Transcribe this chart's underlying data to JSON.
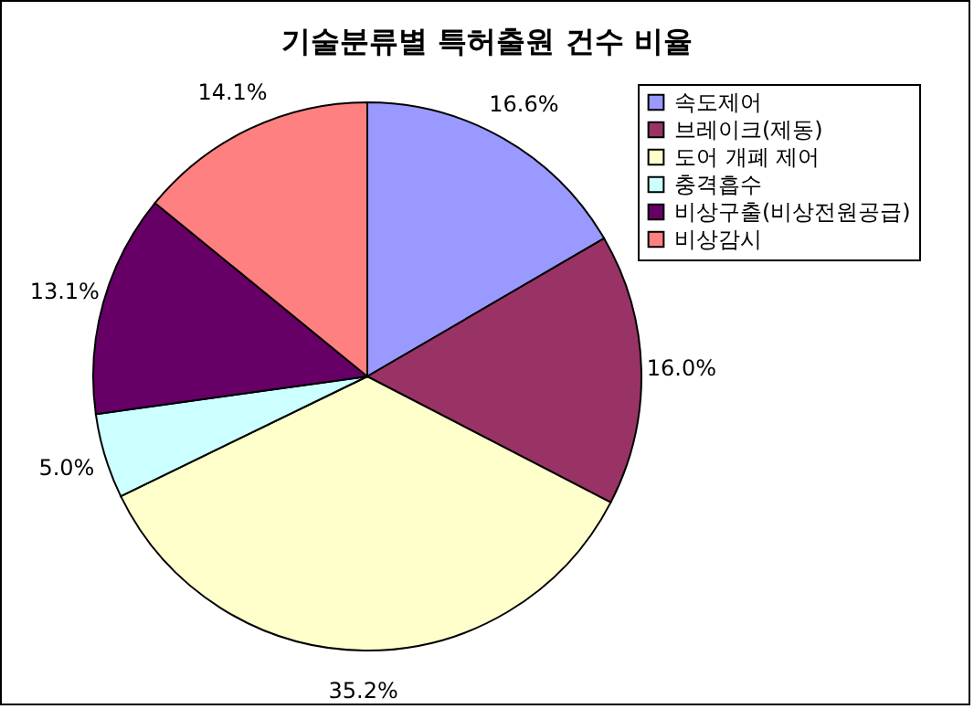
{
  "chart_data": {
    "type": "pie",
    "title": "기술분류별 특허출원 건수 비율",
    "categories": [
      "속도제어",
      "브레이크(제동)",
      "도어 개폐 제어",
      "충격흡수",
      "비상구출(비상전원공급)",
      "비상감시"
    ],
    "values": [
      16.6,
      16.0,
      35.2,
      5.0,
      13.1,
      14.1
    ],
    "colors": [
      "#9999ff",
      "#993366",
      "#ffffcc",
      "#ccffff",
      "#660066",
      "#ff8080"
    ],
    "value_labels": [
      "16.6%",
      "16.0%",
      "35.2%",
      "5.0%",
      "13.1%",
      "14.1%"
    ],
    "legend": "top right"
  }
}
